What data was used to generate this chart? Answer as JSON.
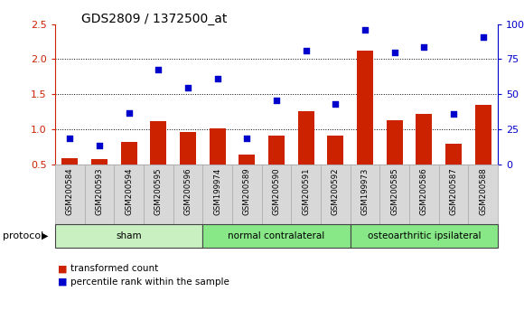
{
  "title": "GDS2809 / 1372500_at",
  "categories": [
    "GSM200584",
    "GSM200593",
    "GSM200594",
    "GSM200595",
    "GSM200596",
    "GSM199974",
    "GSM200589",
    "GSM200590",
    "GSM200591",
    "GSM200592",
    "GSM199973",
    "GSM200585",
    "GSM200586",
    "GSM200587",
    "GSM200588"
  ],
  "bar_values": [
    0.6,
    0.58,
    0.83,
    1.12,
    0.97,
    1.02,
    0.65,
    0.92,
    1.26,
    0.92,
    2.12,
    1.13,
    1.22,
    0.8,
    1.35
  ],
  "scatter_values": [
    0.87,
    0.78,
    1.24,
    1.85,
    1.6,
    1.72,
    0.88,
    1.42,
    2.12,
    1.36,
    2.42,
    2.1,
    2.17,
    1.22,
    2.32
  ],
  "group_configs": [
    {
      "label": "sham",
      "start": 0,
      "end": 5,
      "color": "#c8f0c0"
    },
    {
      "label": "normal contralateral",
      "start": 5,
      "end": 10,
      "color": "#88e888"
    },
    {
      "label": "osteoarthritic ipsilateral",
      "start": 10,
      "end": 15,
      "color": "#88e888"
    }
  ],
  "ylim_left": [
    0.5,
    2.5
  ],
  "yticks_left": [
    0.5,
    1.0,
    1.5,
    2.0,
    2.5
  ],
  "ytick_labels_right": [
    "0",
    "25",
    "50",
    "75",
    "100%"
  ],
  "bar_color": "#cc2200",
  "scatter_color": "#0000cc",
  "left_axis_color": "#cc2200",
  "right_axis_color": "#0000cc",
  "grid_values": [
    1.0,
    1.5,
    2.0
  ],
  "legend_items": [
    {
      "label": "transformed count",
      "color": "#cc2200"
    },
    {
      "label": "percentile rank within the sample",
      "color": "#0000cc"
    }
  ],
  "protocol_label": "protocol",
  "tick_label_bg": "#d8d8d8",
  "sham_color": "#c8f0c0",
  "other_group_color": "#88e888"
}
